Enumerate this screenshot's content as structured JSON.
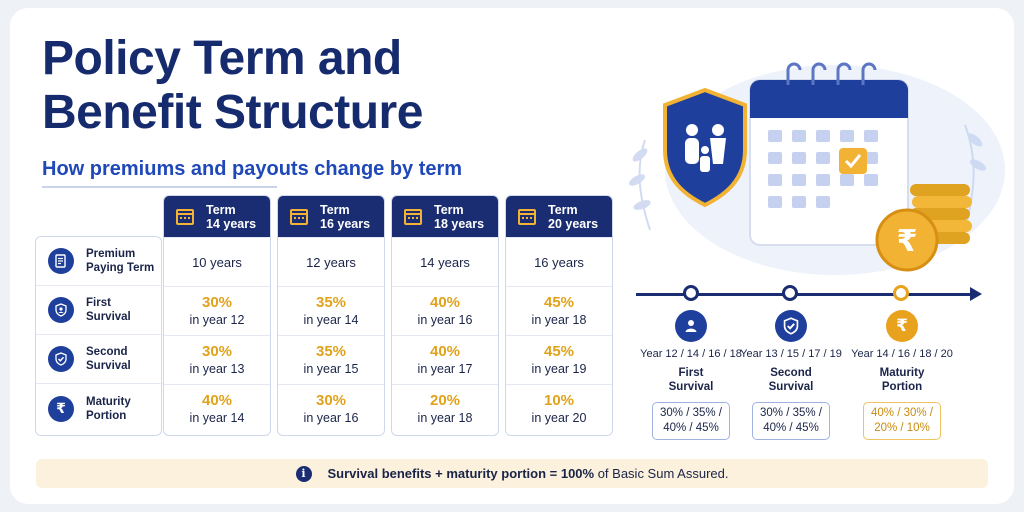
{
  "header": {
    "title_line1": "Policy Term and",
    "title_line2": "Benefit Structure",
    "subtitle": "How premiums and payouts change by term"
  },
  "rows": [
    {
      "label_line1": "Premium",
      "label_line2": "Paying Term",
      "icon": "document-icon"
    },
    {
      "label_line1": "First",
      "label_line2": "Survival",
      "icon": "person-shield-icon"
    },
    {
      "label_line1": "Second",
      "label_line2": "Survival",
      "icon": "check-shield-icon"
    },
    {
      "label_line1": "Maturity",
      "label_line2": "Portion",
      "icon": "rupee-icon"
    }
  ],
  "terms": [
    {
      "head1": "Term",
      "head2": "14 years",
      "ppt": "10 years",
      "first": {
        "pct": "30%",
        "year": "in year 12"
      },
      "second": {
        "pct": "30%",
        "year": "in year 13"
      },
      "maturity": {
        "pct": "40%",
        "year": "in year 14"
      }
    },
    {
      "head1": "Term",
      "head2": "16 years",
      "ppt": "12 years",
      "first": {
        "pct": "35%",
        "year": "in year 14"
      },
      "second": {
        "pct": "35%",
        "year": "in year 15"
      },
      "maturity": {
        "pct": "30%",
        "year": "in year 16"
      }
    },
    {
      "head1": "Term",
      "head2": "18 years",
      "ppt": "14 years",
      "first": {
        "pct": "40%",
        "year": "in year 16"
      },
      "second": {
        "pct": "40%",
        "year": "in year 17"
      },
      "maturity": {
        "pct": "20%",
        "year": "in year 18"
      }
    },
    {
      "head1": "Term",
      "head2": "20 years",
      "ppt": "16 years",
      "first": {
        "pct": "45%",
        "year": "in year 18"
      },
      "second": {
        "pct": "45%",
        "year": "in year 19"
      },
      "maturity": {
        "pct": "10%",
        "year": "in year 20"
      }
    }
  ],
  "timeline": [
    {
      "years": "Year 12 / 14 / 16 / 18",
      "name1": "First",
      "name2": "Survival",
      "pct1": "30% / 35% /",
      "pct2": "40% / 45%",
      "icon": "person-icon",
      "color": "#1f3f9c"
    },
    {
      "years": "Year 13 / 15 / 17 / 19",
      "name1": "Second",
      "name2": "Survival",
      "pct1": "30% / 35% /",
      "pct2": "40% / 45%",
      "icon": "check-shield-icon",
      "color": "#1f3f9c"
    },
    {
      "years": "Year 14 / 16 / 18 / 20",
      "name1": "Maturity",
      "name2": "Portion",
      "pct1": "40% / 30% /",
      "pct2": "20% / 10%",
      "icon": "rupee-icon",
      "color": "#e8a21d"
    }
  ],
  "note": {
    "bold": "Survival benefits + maturity portion = 100%",
    "rest": " of Basic Sum Assured."
  },
  "colors": {
    "navy": "#1a2d72",
    "gold": "#e1a21b",
    "accent": "#1f48b8"
  }
}
